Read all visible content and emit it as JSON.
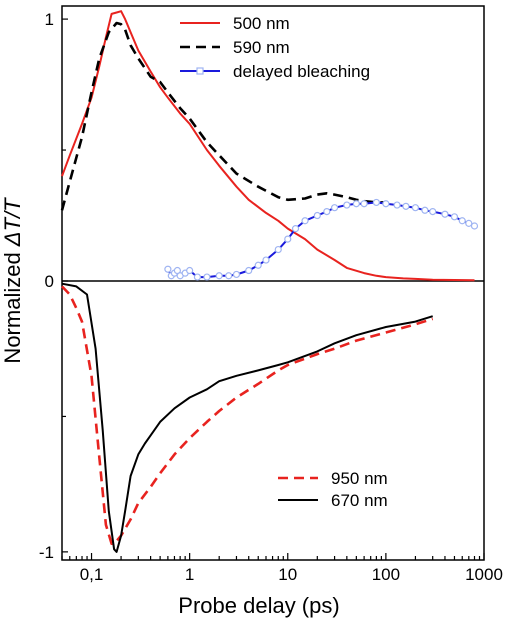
{
  "chart_data": {
    "type": "line",
    "xlabel": "Probe delay (ps)",
    "ylabel_prefix": "Normalized ",
    "ylabel_symbol": "ΔT/T",
    "xscale": "log",
    "xlim": [
      0.05,
      1000
    ],
    "x_ticks": [
      0.1,
      1,
      10,
      100,
      1000
    ],
    "x_tick_labels": [
      "0,1",
      "1",
      "10",
      "100",
      "1000"
    ],
    "panels": [
      {
        "name": "top",
        "ylim": [
          0,
          1.05
        ],
        "y_tick_labels": [
          {
            "value": 1,
            "label": "1"
          },
          {
            "value": 0,
            "label": "0"
          }
        ],
        "legend_position": "top-right",
        "series": [
          {
            "name": "500 nm",
            "color": "#e8231f",
            "style": "solid",
            "x": [
              0.05,
              0.06,
              0.08,
              0.1,
              0.12,
              0.14,
              0.16,
              0.18,
              0.2,
              0.22,
              0.25,
              0.3,
              0.4,
              0.5,
              0.6,
              0.8,
              1,
              1.5,
              2,
              3,
              4,
              6,
              8,
              10,
              15,
              20,
              30,
              40,
              60,
              80,
              100,
              150,
              200,
              300,
              500,
              800
            ],
            "y": [
              0.4,
              0.48,
              0.6,
              0.7,
              0.82,
              0.93,
              1.02,
              1.025,
              1.03,
              1.0,
              0.95,
              0.88,
              0.8,
              0.74,
              0.7,
              0.64,
              0.6,
              0.5,
              0.44,
              0.36,
              0.31,
              0.26,
              0.23,
              0.2,
              0.16,
              0.12,
              0.08,
              0.05,
              0.03,
              0.02,
              0.015,
              0.01,
              0.008,
              0.005,
              0.004,
              0.003
            ]
          },
          {
            "name": "590 nm",
            "color": "#000000",
            "style": "dashed",
            "x": [
              0.05,
              0.06,
              0.08,
              0.1,
              0.12,
              0.15,
              0.18,
              0.2,
              0.22,
              0.25,
              0.3,
              0.4,
              0.5,
              0.6,
              0.8,
              1,
              1.5,
              2,
              3,
              5,
              8,
              10,
              15,
              20,
              25,
              30,
              40,
              50,
              60,
              80,
              100
            ],
            "y": [
              0.27,
              0.38,
              0.55,
              0.72,
              0.85,
              0.95,
              0.985,
              0.98,
              0.96,
              0.9,
              0.85,
              0.78,
              0.76,
              0.72,
              0.66,
              0.62,
              0.53,
              0.48,
              0.41,
              0.36,
              0.32,
              0.31,
              0.315,
              0.33,
              0.335,
              0.33,
              0.32,
              0.31,
              0.305,
              0.3,
              0.3
            ]
          },
          {
            "name": "delayed bleaching",
            "color": "#1a1adc",
            "marker_color": "#9fb4f2",
            "style": "solid-markers",
            "x": [
              0.6,
              0.65,
              0.7,
              0.75,
              0.8,
              0.9,
              1.0,
              1.2,
              1.5,
              2,
              2.5,
              3,
              4,
              5,
              6,
              8,
              10,
              12,
              15,
              20,
              25,
              30,
              40,
              50,
              60,
              80,
              100,
              130,
              160,
              200,
              250,
              300,
              400,
              500,
              600,
              700,
              800
            ],
            "y": [
              0.045,
              0.02,
              0.03,
              0.04,
              0.02,
              0.03,
              0.04,
              0.015,
              0.015,
              0.02,
              0.02,
              0.025,
              0.04,
              0.06,
              0.08,
              0.12,
              0.16,
              0.2,
              0.23,
              0.25,
              0.265,
              0.28,
              0.29,
              0.295,
              0.295,
              0.3,
              0.295,
              0.29,
              0.285,
              0.28,
              0.27,
              0.265,
              0.255,
              0.245,
              0.23,
              0.22,
              0.21
            ]
          }
        ]
      },
      {
        "name": "bottom",
        "ylim": [
          -1.03,
          0
        ],
        "y_tick_labels": [
          {
            "value": -1,
            "label": "-1"
          }
        ],
        "legend_position": "bottom-right",
        "series": [
          {
            "name": "950 nm",
            "color": "#e8231f",
            "style": "dashed",
            "x": [
              0.05,
              0.06,
              0.07,
              0.08,
              0.1,
              0.12,
              0.14,
              0.16,
              0.18,
              0.2,
              0.25,
              0.3,
              0.4,
              0.5,
              0.7,
              1,
              1.5,
              2,
              3,
              5,
              8,
              10,
              20,
              30,
              50,
              100,
              200,
              300
            ],
            "y": [
              -0.02,
              -0.05,
              -0.1,
              -0.15,
              -0.35,
              -0.65,
              -0.9,
              -0.97,
              -0.96,
              -0.94,
              -0.88,
              -0.82,
              -0.76,
              -0.71,
              -0.64,
              -0.58,
              -0.52,
              -0.48,
              -0.43,
              -0.38,
              -0.33,
              -0.31,
              -0.27,
              -0.25,
              -0.22,
              -0.19,
              -0.16,
              -0.14
            ]
          },
          {
            "name": "670 nm",
            "color": "#000000",
            "style": "solid",
            "x": [
              0.05,
              0.07,
              0.09,
              0.11,
              0.13,
              0.15,
              0.17,
              0.18,
              0.2,
              0.22,
              0.25,
              0.3,
              0.35,
              0.4,
              0.5,
              0.7,
              1,
              1.5,
              2,
              3,
              5,
              8,
              10,
              20,
              30,
              50,
              100,
              200,
              300
            ],
            "y": [
              -0.01,
              -0.02,
              -0.05,
              -0.25,
              -0.55,
              -0.85,
              -0.99,
              -1.0,
              -0.94,
              -0.85,
              -0.72,
              -0.64,
              -0.6,
              -0.57,
              -0.52,
              -0.47,
              -0.43,
              -0.4,
              -0.37,
              -0.35,
              -0.33,
              -0.31,
              -0.3,
              -0.26,
              -0.23,
              -0.2,
              -0.17,
              -0.15,
              -0.13
            ]
          }
        ]
      }
    ]
  }
}
